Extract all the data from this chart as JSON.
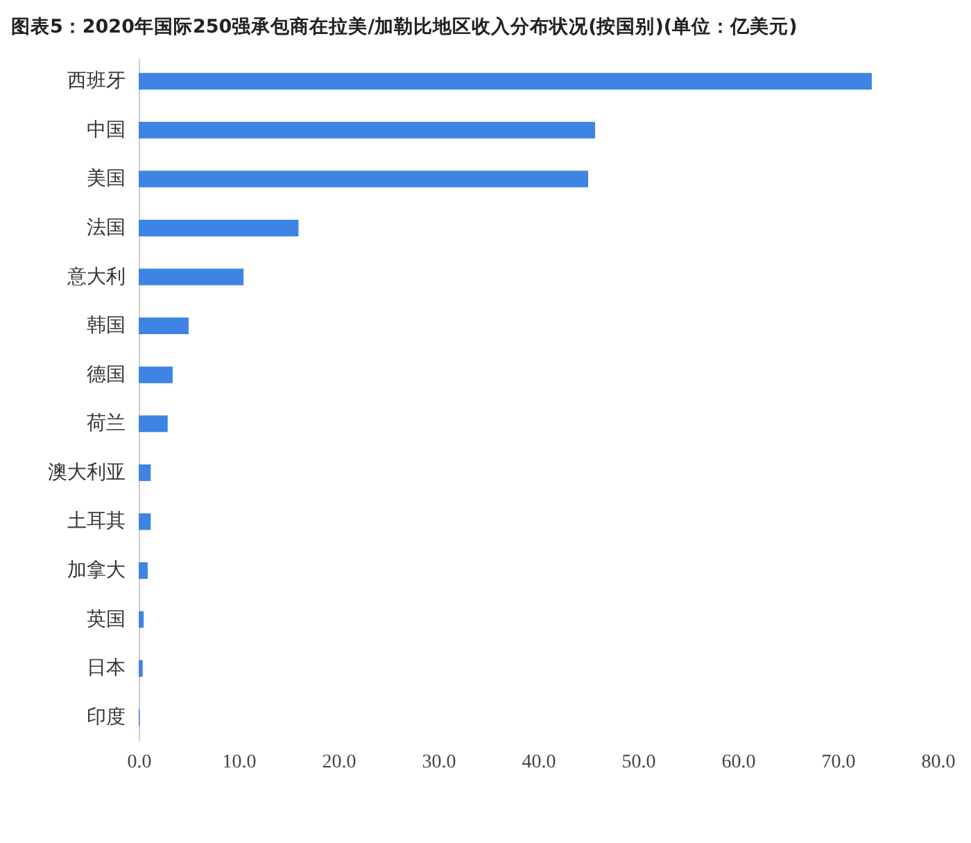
{
  "chart_data": {
    "type": "bar",
    "orientation": "horizontal",
    "title": "图表5：2020年国际250强承包商在拉美/加勒比地区收入分布状况(按国别)(单位：亿美元)",
    "categories": [
      "西班牙",
      "中国",
      "美国",
      "法国",
      "意大利",
      "韩国",
      "德国",
      "荷兰",
      "澳大利亚",
      "土耳其",
      "加拿大",
      "英国",
      "日本",
      "印度"
    ],
    "values": [
      73.4,
      45.7,
      45.0,
      16.0,
      10.5,
      5.0,
      3.4,
      2.9,
      1.2,
      1.2,
      0.9,
      0.5,
      0.4,
      0.1
    ],
    "color": "#3f84e5",
    "xlim": [
      0,
      80
    ],
    "xticks": [
      {
        "value": 0,
        "label": "0.0"
      },
      {
        "value": 10,
        "label": "10.0"
      },
      {
        "value": 20,
        "label": "20.0"
      },
      {
        "value": 30,
        "label": "30.0"
      },
      {
        "value": 40,
        "label": "40.0"
      },
      {
        "value": 50,
        "label": "50.0"
      },
      {
        "value": 60,
        "label": "60.0"
      },
      {
        "value": 70,
        "label": "70.0"
      },
      {
        "value": 80,
        "label": "80.0"
      }
    ],
    "grid": false
  }
}
